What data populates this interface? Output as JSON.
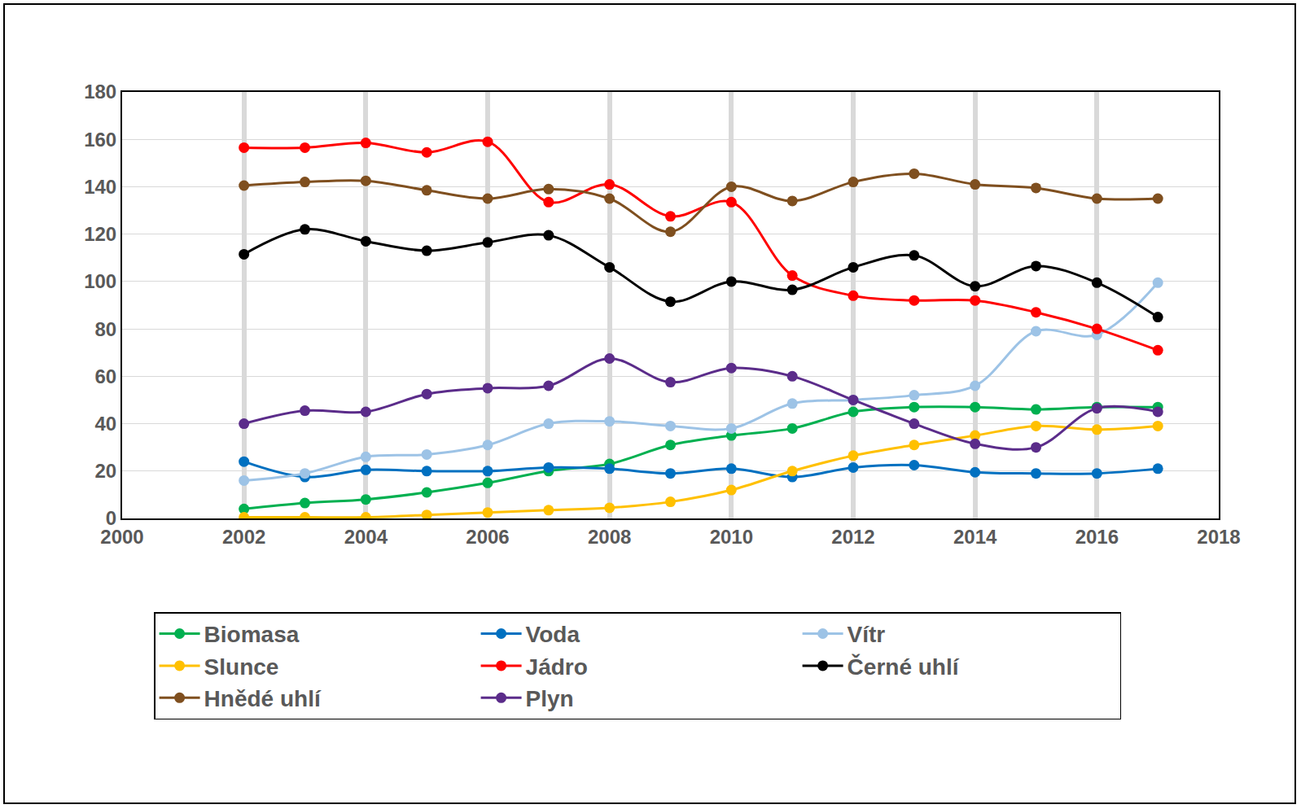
{
  "chart_data": {
    "type": "line",
    "x": [
      2002,
      2003,
      2004,
      2005,
      2006,
      2007,
      2008,
      2009,
      2010,
      2011,
      2012,
      2013,
      2014,
      2015,
      2016,
      2017
    ],
    "xlim": [
      2000,
      2018
    ],
    "xticks": [
      2000,
      2002,
      2004,
      2006,
      2008,
      2010,
      2012,
      2014,
      2016,
      2018
    ],
    "ylim": [
      0,
      180
    ],
    "yticks": [
      0,
      20,
      40,
      60,
      80,
      100,
      120,
      140,
      160,
      180
    ],
    "grid": true,
    "legend": "bottom",
    "marker": "circle",
    "line_style": "smooth",
    "series": [
      {
        "name": "Biomasa",
        "color": "#00B050",
        "values": [
          4,
          6.5,
          8,
          11,
          15,
          20,
          23,
          31,
          35,
          38,
          45,
          47,
          47,
          46,
          47,
          47
        ]
      },
      {
        "name": "Voda",
        "color": "#0070C0",
        "values": [
          24,
          17.5,
          20.5,
          20,
          20,
          21.5,
          21,
          19,
          21,
          17.5,
          21.5,
          22.5,
          19.5,
          19,
          19,
          21
        ]
      },
      {
        "name": "Vítr",
        "color": "#9DC3E6",
        "values": [
          16,
          19,
          26,
          27,
          31,
          40,
          41,
          39,
          38,
          48.5,
          50,
          52,
          56,
          79,
          77.5,
          99.5
        ]
      },
      {
        "name": "Slunce",
        "color": "#FFC000",
        "values": [
          0.5,
          0.5,
          0.5,
          1.5,
          2.5,
          3.5,
          4.5,
          7,
          12,
          20,
          26.5,
          31,
          35,
          39,
          37.5,
          39
        ]
      },
      {
        "name": "Jádro",
        "color": "#FF0000",
        "values": [
          156.5,
          156.5,
          158.5,
          154.5,
          159,
          133.5,
          141,
          127.5,
          133.5,
          102.5,
          94,
          92,
          92,
          87,
          80,
          71
        ]
      },
      {
        "name": "Černé uhlí",
        "color": "#000000",
        "values": [
          111.5,
          122,
          117,
          113,
          116.5,
          119.5,
          106,
          91.5,
          100,
          96.5,
          106,
          111,
          98,
          106.5,
          99.5,
          85
        ]
      },
      {
        "name": "Hnědé uhlí",
        "color": "#7F4F1F",
        "values": [
          140.5,
          142,
          142.5,
          138.5,
          135,
          139,
          135,
          121,
          140,
          134,
          142,
          145.5,
          141,
          139.5,
          135,
          135
        ]
      },
      {
        "name": "Plyn",
        "color": "#5B2C8A",
        "values": [
          40,
          45.5,
          45,
          52.5,
          55,
          56,
          67.5,
          57.5,
          63.5,
          60,
          50,
          40,
          31.5,
          30,
          46.5,
          45
        ]
      }
    ]
  }
}
